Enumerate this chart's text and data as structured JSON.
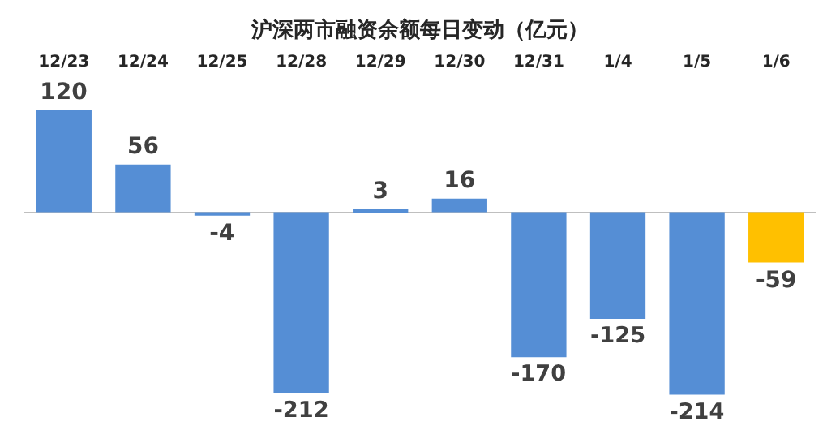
{
  "chart_data": {
    "type": "bar",
    "title": "沪深两市融资余额每日变动（亿元）",
    "categories": [
      "12/23",
      "12/24",
      "12/25",
      "12/28",
      "12/29",
      "12/30",
      "12/31",
      "1/4",
      "1/5",
      "1/6"
    ],
    "values": [
      120,
      56,
      -4,
      -212,
      3,
      16,
      -170,
      -125,
      -214,
      -59
    ],
    "colors": [
      "#558ed5",
      "#558ed5",
      "#558ed5",
      "#558ed5",
      "#558ed5",
      "#558ed5",
      "#558ed5",
      "#558ed5",
      "#558ed5",
      "#ffc000"
    ],
    "data_labels": true,
    "tick_labels": "x"
  }
}
